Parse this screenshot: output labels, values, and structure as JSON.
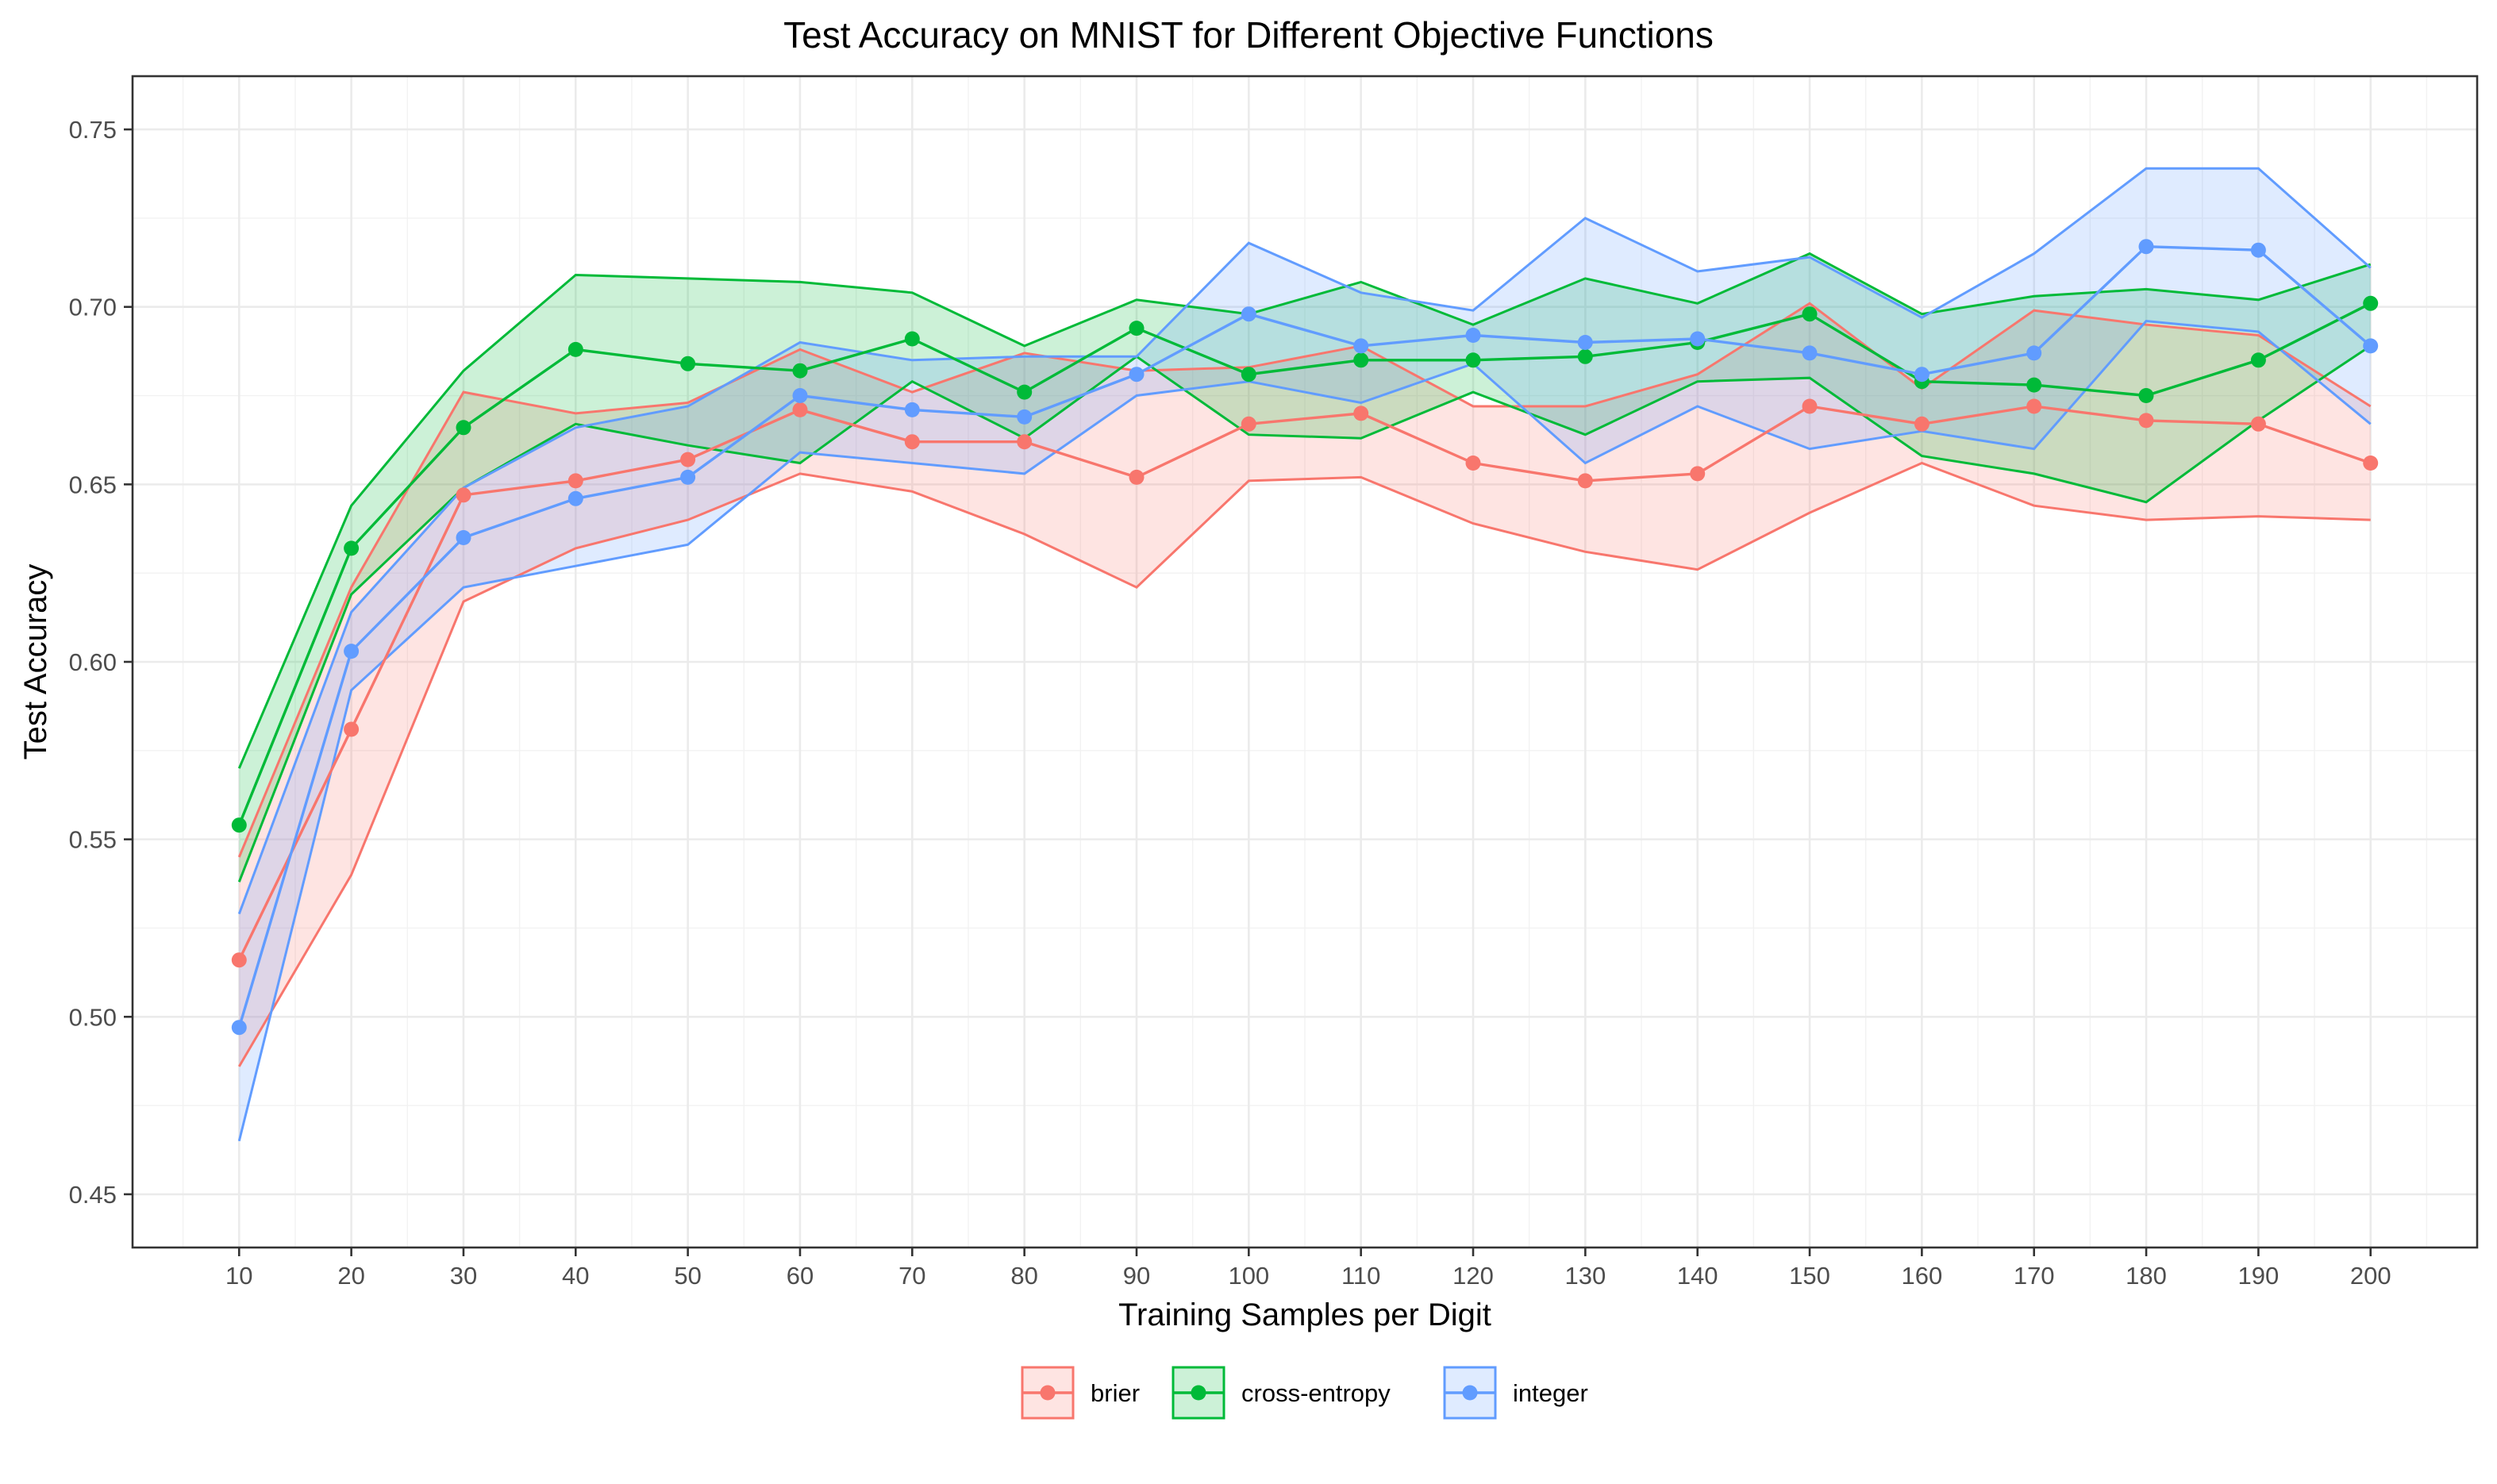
{
  "chart_data": {
    "type": "line",
    "title": "Test Accuracy on MNIST for Different Objective Functions",
    "xlabel": "Training Samples per Digit",
    "ylabel": "Test Accuracy",
    "x": [
      10,
      20,
      30,
      40,
      50,
      60,
      70,
      80,
      90,
      100,
      110,
      120,
      130,
      140,
      150,
      160,
      170,
      180,
      190,
      200
    ],
    "xticks": [
      "10",
      "20",
      "30",
      "40",
      "50",
      "60",
      "70",
      "80",
      "90",
      "100",
      "110",
      "120",
      "130",
      "140",
      "150",
      "160",
      "170",
      "180",
      "190",
      "200"
    ],
    "xlim": [
      0.5,
      209.5
    ],
    "yticks": [
      "0.45",
      "0.50",
      "0.55",
      "0.60",
      "0.65",
      "0.70",
      "0.75"
    ],
    "ylim": [
      0.435,
      0.765
    ],
    "grid": true,
    "legend_position": "bottom",
    "series": [
      {
        "name": "brier",
        "color": "#F8766D",
        "fill": "#F8766D",
        "mean": [
          0.516,
          0.581,
          0.647,
          0.651,
          0.657,
          0.671,
          0.662,
          0.662,
          0.652,
          0.667,
          0.67,
          0.656,
          0.651,
          0.653,
          0.672,
          0.667,
          0.672,
          0.668,
          0.667,
          0.656
        ],
        "lower": [
          0.486,
          0.54,
          0.617,
          0.632,
          0.64,
          0.653,
          0.648,
          0.636,
          0.621,
          0.651,
          0.652,
          0.639,
          0.631,
          0.626,
          0.642,
          0.656,
          0.644,
          0.64,
          0.641,
          0.64
        ],
        "upper": [
          0.545,
          0.621,
          0.676,
          0.67,
          0.673,
          0.688,
          0.676,
          0.687,
          0.682,
          0.683,
          0.689,
          0.672,
          0.672,
          0.681,
          0.701,
          0.677,
          0.699,
          0.695,
          0.692,
          0.672
        ]
      },
      {
        "name": "cross-entropy",
        "color": "#00BA38",
        "fill": "#00BA38",
        "mean": [
          0.554,
          0.632,
          0.666,
          0.688,
          0.684,
          0.682,
          0.691,
          0.676,
          0.694,
          0.681,
          0.685,
          0.685,
          0.686,
          0.69,
          0.698,
          0.679,
          0.678,
          0.675,
          0.685,
          0.701
        ],
        "lower": [
          0.538,
          0.619,
          0.649,
          0.667,
          0.661,
          0.656,
          0.679,
          0.663,
          0.686,
          0.664,
          0.663,
          0.676,
          0.664,
          0.679,
          0.68,
          0.658,
          0.653,
          0.645,
          0.668,
          0.689
        ],
        "upper": [
          0.57,
          0.644,
          0.682,
          0.709,
          0.708,
          0.707,
          0.704,
          0.689,
          0.702,
          0.698,
          0.707,
          0.695,
          0.708,
          0.701,
          0.715,
          0.698,
          0.703,
          0.705,
          0.702,
          0.712
        ]
      },
      {
        "name": "integer",
        "color": "#619CFF",
        "fill": "#619CFF",
        "mean": [
          0.497,
          0.603,
          0.635,
          0.646,
          0.652,
          0.675,
          0.671,
          0.669,
          0.681,
          0.698,
          0.689,
          0.692,
          0.69,
          0.691,
          0.687,
          0.681,
          0.687,
          0.717,
          0.716,
          0.689
        ],
        "lower": [
          0.465,
          0.592,
          0.621,
          0.627,
          0.633,
          0.659,
          0.656,
          0.653,
          0.675,
          0.679,
          0.673,
          0.684,
          0.656,
          0.672,
          0.66,
          0.665,
          0.66,
          0.696,
          0.693,
          0.667
        ],
        "upper": [
          0.529,
          0.614,
          0.649,
          0.666,
          0.672,
          0.69,
          0.685,
          0.686,
          0.686,
          0.718,
          0.704,
          0.699,
          0.725,
          0.71,
          0.714,
          0.697,
          0.715,
          0.739,
          0.739,
          0.711
        ]
      }
    ]
  }
}
